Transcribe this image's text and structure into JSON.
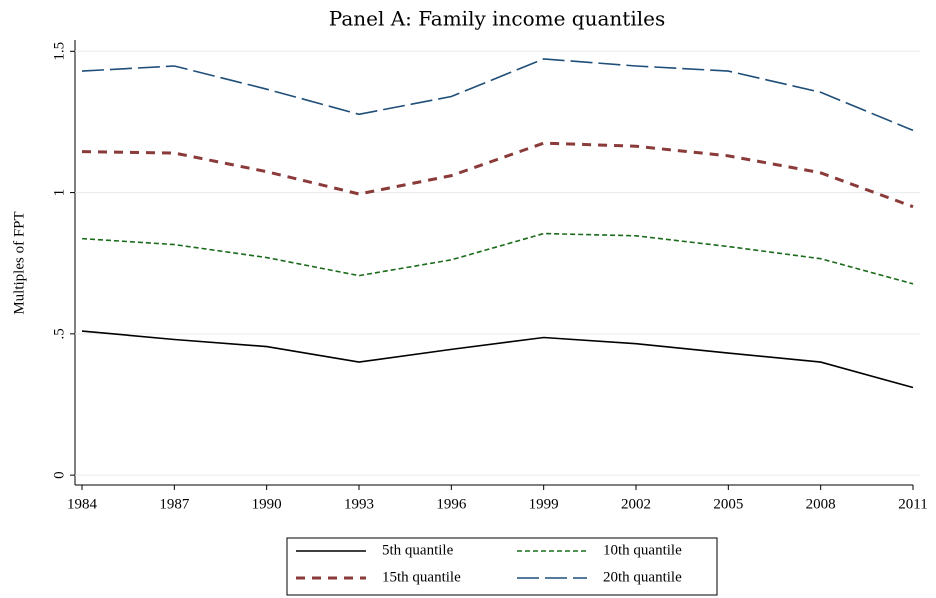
{
  "chart_data": {
    "type": "line",
    "title": "Panel A: Family income quantiles",
    "y_label": "Multiples of FPT",
    "x": [
      1984,
      1987,
      1990,
      1993,
      1996,
      1999,
      2002,
      2005,
      2008,
      2011
    ],
    "xlim": [
      1984,
      2011
    ],
    "xticks": [
      1984,
      1987,
      1990,
      1993,
      1996,
      1999,
      2002,
      2005,
      2008,
      2011
    ],
    "ylim": [
      -0.035,
      1.54
    ],
    "yticks": [
      0,
      {
        "value": 0.5,
        "label": ".5"
      },
      1,
      1.5
    ],
    "grid": true,
    "legend": "bottom",
    "series": [
      {
        "name": "5th quantile",
        "color": "#000000",
        "style": "solid",
        "values": [
          0.51,
          0.48,
          0.455,
          0.4,
          0.445,
          0.487,
          0.465,
          0.432,
          0.4,
          0.31
        ]
      },
      {
        "name": "10th quantile",
        "color": "#1a6b1a",
        "style": "short-dash",
        "values": [
          0.837,
          0.816,
          0.77,
          0.706,
          0.762,
          0.855,
          0.847,
          0.809,
          0.766,
          0.677
        ]
      },
      {
        "name": "15th quantile",
        "color": "#8b3a3a",
        "style": "dash",
        "values": [
          1.145,
          1.14,
          1.074,
          0.995,
          1.06,
          1.175,
          1.164,
          1.13,
          1.07,
          0.95
        ]
      },
      {
        "name": "20th quantile",
        "color": "#1f4e79",
        "style": "long-dash",
        "values": [
          1.43,
          1.448,
          1.366,
          1.277,
          1.34,
          1.473,
          1.448,
          1.43,
          1.355,
          1.22
        ]
      }
    ]
  }
}
